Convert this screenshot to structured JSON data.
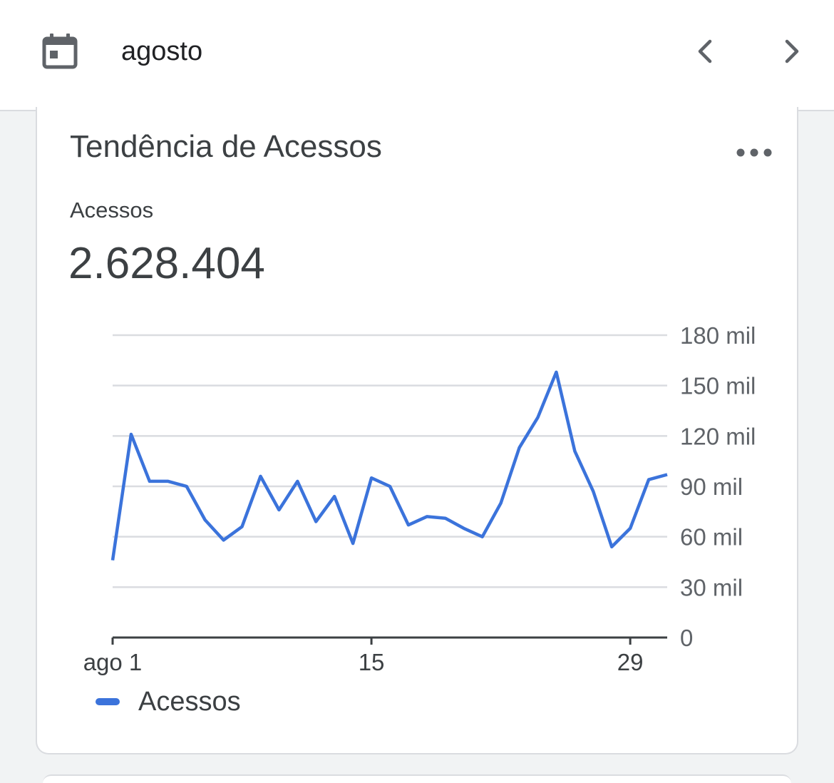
{
  "header": {
    "month": "agosto",
    "calendar_icon": "calendar-icon",
    "prev_icon": "chevron-left-icon",
    "next_icon": "chevron-right-icon"
  },
  "card": {
    "title": "Tendência de Acessos",
    "more_icon": "more-horizontal-icon",
    "metric_label": "Acessos",
    "metric_value": "2.628.404"
  },
  "chart_data": {
    "type": "line",
    "x": [
      1,
      2,
      3,
      4,
      5,
      6,
      7,
      8,
      9,
      10,
      11,
      12,
      13,
      14,
      15,
      16,
      17,
      18,
      19,
      20,
      21,
      22,
      23,
      24,
      25,
      26,
      27,
      28,
      29,
      30,
      31
    ],
    "x_tick_labels": [
      {
        "x": 1,
        "label": "ago 1"
      },
      {
        "x": 15,
        "label": "15"
      },
      {
        "x": 29,
        "label": "29"
      }
    ],
    "series": [
      {
        "name": "Acessos",
        "color": "#3b73db",
        "values": [
          46000,
          121000,
          93000,
          93000,
          90000,
          70000,
          58000,
          66000,
          96000,
          76000,
          93000,
          69000,
          84000,
          56000,
          95000,
          90000,
          67000,
          72000,
          71000,
          65000,
          60000,
          80000,
          113000,
          131000,
          158000,
          111000,
          87000,
          54000,
          65000,
          94000,
          97000
        ]
      }
    ],
    "y_ticks": [
      0,
      30000,
      60000,
      90000,
      120000,
      150000,
      180000
    ],
    "y_tick_labels": [
      "0",
      "30 mil",
      "60 mil",
      "90 mil",
      "120 mil",
      "150 mil",
      "180 mil"
    ],
    "ylim": [
      0,
      180000
    ],
    "xlim": [
      1,
      31
    ],
    "grid": true,
    "legend": "bottom-left"
  }
}
